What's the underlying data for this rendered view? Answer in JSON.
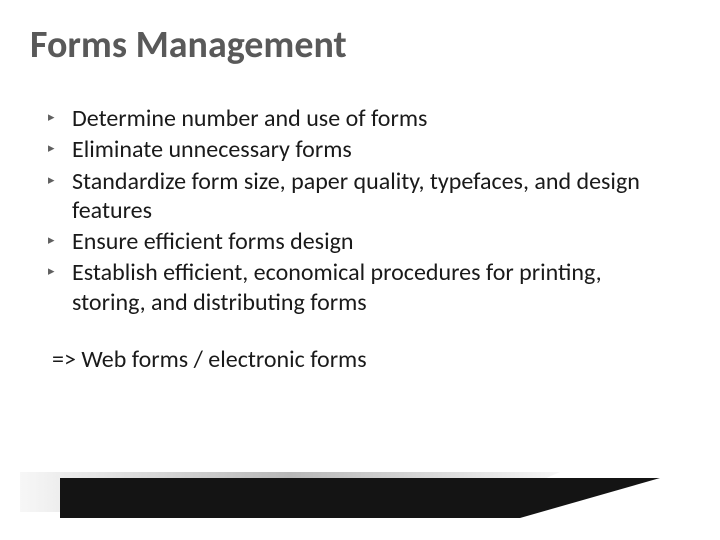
{
  "title": "Forms Management",
  "bullets": [
    "Determine number and use of forms",
    "Eliminate unnecessary forms",
    "Standardize form size, paper quality, typefaces, and design features",
    "Ensure efficient forms design",
    "Establish efficient, economical procedures for printing, storing, and distributing forms"
  ],
  "footer": "=> Web forms / electronic forms",
  "style": {
    "slide_width": 720,
    "slide_height": 540,
    "background_color": "#ffffff",
    "title_color": "#595959",
    "title_fontsize": 38,
    "title_fontweight": 700,
    "body_color": "#1a1a1a",
    "body_fontsize": 24,
    "bullet_marker": "▸",
    "bullet_marker_color": "#606060",
    "decor": {
      "wedge_fill": "#141414",
      "wedge_grad_light": "#f7f7f7",
      "wedge_grad_mid": "#b8b8b8"
    }
  }
}
